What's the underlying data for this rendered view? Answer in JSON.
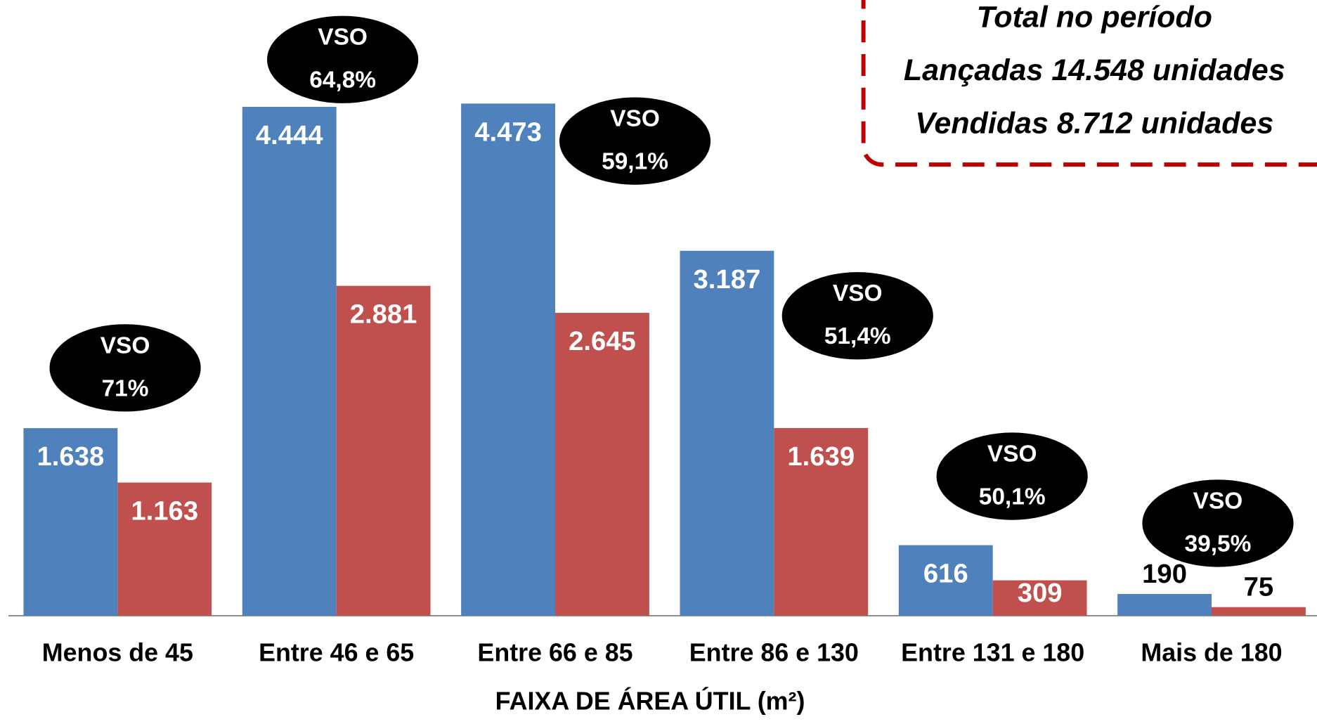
{
  "chart_data": {
    "type": "bar",
    "x_label": "FAIXA DE ÁREA ÚTIL (m²)",
    "categories": [
      "Menos de 45",
      "Entre 46 e 65",
      "Entre 66 e 85",
      "Entre 86 e 130",
      "Entre 131 e 180",
      "Mais de 180"
    ],
    "series": [
      {
        "color": "#4f81bd",
        "values": [
          1638,
          4444,
          4473,
          3187,
          616,
          190
        ],
        "value_labels": [
          "1.638",
          "4.444",
          "4.473",
          "3.187",
          "616",
          "190"
        ]
      },
      {
        "color": "#c0504d",
        "values": [
          1163,
          2881,
          2645,
          1639,
          309,
          75
        ],
        "value_labels": [
          "1.163",
          "2.881",
          "2.645",
          "1.639",
          "309",
          "75"
        ]
      }
    ],
    "ylim": [
      0,
      5400
    ],
    "annotations": [
      {
        "text": "VSO",
        "value": 71,
        "label": "71%"
      },
      {
        "text": "VSO",
        "value": 64.8,
        "label": "64,8%"
      },
      {
        "text": "VSO",
        "value": 59.1,
        "label": "59,1%"
      },
      {
        "text": "VSO",
        "value": 51.4,
        "label": "51,4%"
      },
      {
        "text": "VSO",
        "value": 50.1,
        "label": "50,1%"
      },
      {
        "text": "VSO",
        "value": 39.5,
        "label": "39,5%"
      }
    ],
    "box": {
      "lines": [
        "Total no período",
        "Lançadas 14.548 unidades",
        "Vendidas 8.712 unidades"
      ]
    }
  }
}
